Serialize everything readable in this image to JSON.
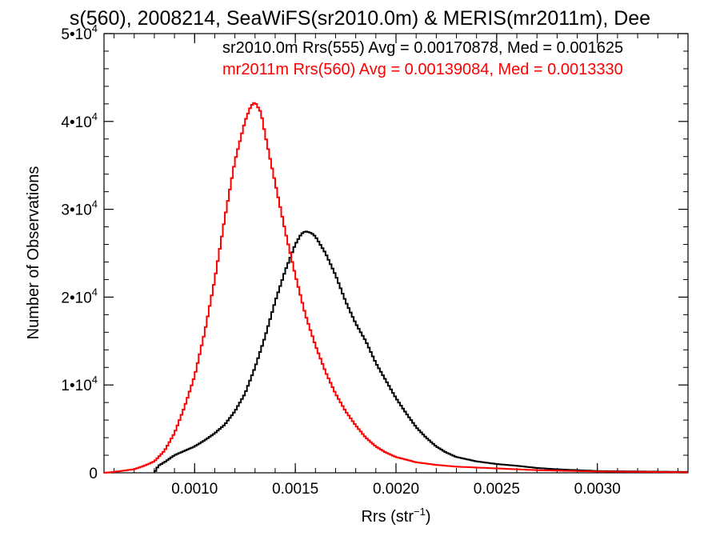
{
  "chart_data": {
    "type": "line",
    "title": "s(560), 2008214, SeaWiFS(sr2010.0m) & MERIS(mr2011m), Dee",
    "xlabel": "Rrs (str",
    "xlabel_exponent": "−1",
    "xlabel_close": ")",
    "ylabel": "Number of Observations",
    "xlim": [
      0.00055,
      0.00345
    ],
    "ylim": [
      0,
      50000
    ],
    "x_ticks": [
      {
        "value": 0.001,
        "label": "0.0010"
      },
      {
        "value": 0.0015,
        "label": "0.0015"
      },
      {
        "value": 0.002,
        "label": "0.0020"
      },
      {
        "value": 0.0025,
        "label": "0.0025"
      },
      {
        "value": 0.003,
        "label": "0.0030"
      }
    ],
    "y_ticks": [
      {
        "value": 0,
        "label": "0",
        "exp": ""
      },
      {
        "value": 10000,
        "label": "1•10",
        "exp": "4"
      },
      {
        "value": 20000,
        "label": "2•10",
        "exp": "4"
      },
      {
        "value": 30000,
        "label": "3•10",
        "exp": "4"
      },
      {
        "value": 40000,
        "label": "4•10",
        "exp": "4"
      },
      {
        "value": 50000,
        "label": "5•10",
        "exp": "4"
      }
    ],
    "annotations": [
      {
        "text": "sr2010.0m Rrs(555) Avg = 0.00170878, Med = 0.001625",
        "color": "#000000"
      },
      {
        "text": "mr2011m Rrs(560) Avg = 0.00139084, Med = 0.0013330",
        "color": "#ff0000"
      }
    ],
    "series": [
      {
        "color": "#000000",
        "points": [
          [
            0.0008,
            0
          ],
          [
            0.00082,
            800
          ],
          [
            0.00085,
            1200
          ],
          [
            0.0009,
            2000
          ],
          [
            0.00095,
            2500
          ],
          [
            0.001,
            3000
          ],
          [
            0.00105,
            3700
          ],
          [
            0.0011,
            4500
          ],
          [
            0.00115,
            5500
          ],
          [
            0.0012,
            7000
          ],
          [
            0.00125,
            9000
          ],
          [
            0.0013,
            12000
          ],
          [
            0.00135,
            15500
          ],
          [
            0.0014,
            19500
          ],
          [
            0.00145,
            23000
          ],
          [
            0.0015,
            26000
          ],
          [
            0.00153,
            27200
          ],
          [
            0.00155,
            27500
          ],
          [
            0.00158,
            27300
          ],
          [
            0.0016,
            26900
          ],
          [
            0.00165,
            25000
          ],
          [
            0.0017,
            22500
          ],
          [
            0.00175,
            19500
          ],
          [
            0.0018,
            17000
          ],
          [
            0.00185,
            15000
          ],
          [
            0.0019,
            12500
          ],
          [
            0.00195,
            10500
          ],
          [
            0.002,
            8500
          ],
          [
            0.00205,
            6800
          ],
          [
            0.0021,
            5200
          ],
          [
            0.00215,
            4000
          ],
          [
            0.0022,
            3000
          ],
          [
            0.00225,
            2300
          ],
          [
            0.0023,
            1800
          ],
          [
            0.0024,
            1300
          ],
          [
            0.0025,
            1000
          ],
          [
            0.0026,
            800
          ],
          [
            0.0027,
            550
          ],
          [
            0.0028,
            400
          ],
          [
            0.0029,
            300
          ],
          [
            0.003,
            200
          ],
          [
            0.0032,
            150
          ],
          [
            0.00345,
            100
          ]
        ]
      },
      {
        "color": "#ff0000",
        "points": [
          [
            0.00055,
            0
          ],
          [
            0.0006,
            100
          ],
          [
            0.0007,
            400
          ],
          [
            0.00075,
            800
          ],
          [
            0.0008,
            1300
          ],
          [
            0.00085,
            2500
          ],
          [
            0.0009,
            4500
          ],
          [
            0.00095,
            7500
          ],
          [
            0.001,
            11000
          ],
          [
            0.00105,
            16000
          ],
          [
            0.0011,
            22000
          ],
          [
            0.00115,
            29000
          ],
          [
            0.0012,
            35500
          ],
          [
            0.00125,
            40000
          ],
          [
            0.00128,
            41800
          ],
          [
            0.0013,
            42200
          ],
          [
            0.00133,
            41000
          ],
          [
            0.00135,
            38500
          ],
          [
            0.0014,
            33000
          ],
          [
            0.00145,
            27500
          ],
          [
            0.0015,
            22500
          ],
          [
            0.00155,
            18000
          ],
          [
            0.0016,
            14500
          ],
          [
            0.00165,
            11500
          ],
          [
            0.0017,
            9000
          ],
          [
            0.00175,
            7000
          ],
          [
            0.0018,
            5400
          ],
          [
            0.00185,
            4000
          ],
          [
            0.0019,
            3000
          ],
          [
            0.00195,
            2300
          ],
          [
            0.002,
            1800
          ],
          [
            0.0021,
            1200
          ],
          [
            0.0022,
            900
          ],
          [
            0.0023,
            700
          ],
          [
            0.0025,
            500
          ],
          [
            0.0027,
            300
          ],
          [
            0.003,
            150
          ],
          [
            0.00345,
            60
          ]
        ]
      }
    ]
  }
}
